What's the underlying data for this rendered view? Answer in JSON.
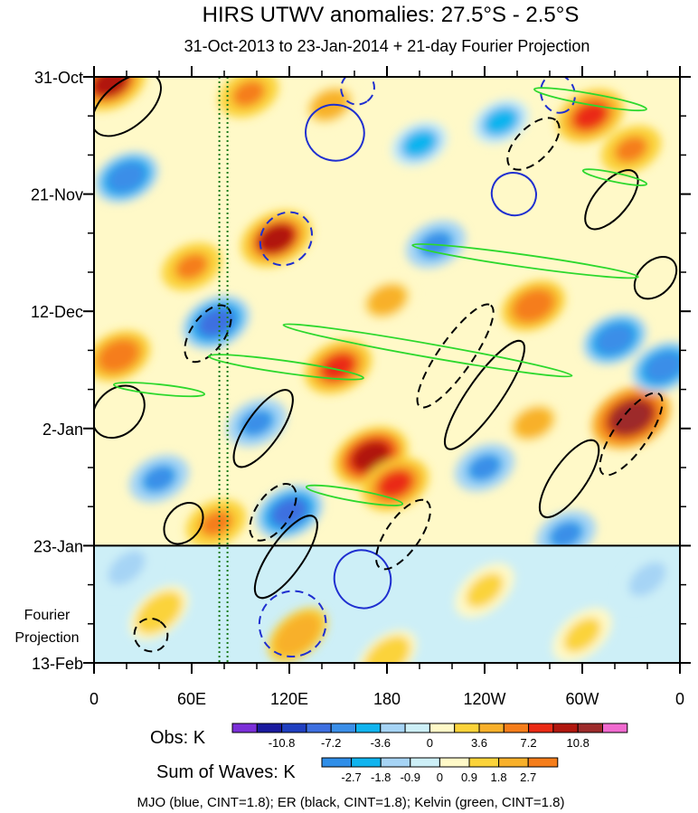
{
  "chart_data": {
    "type": "heatmap",
    "title": "HIRS UTWV anomalies: 27.5°S - 2.5°S",
    "subtitle": "31-Oct-2013 to 23-Jan-2014 + 21-day Fourier Projection",
    "x_axis": {
      "ticks": [
        "0",
        "60E",
        "120E",
        "180",
        "120W",
        "60W",
        "0"
      ],
      "tick_values_deg_east": [
        0,
        60,
        120,
        180,
        240,
        300,
        360
      ],
      "range": [
        0,
        360
      ]
    },
    "y_axis": {
      "ticks": [
        "31-Oct",
        "21-Nov",
        "12-Dec",
        "2-Jan",
        "23-Jan",
        "13-Feb"
      ],
      "tick_values_days": [
        0,
        21,
        42,
        63,
        84,
        105
      ],
      "range_days": [
        0,
        105
      ],
      "direction": "time increases downward"
    },
    "forecast_start_day": 84,
    "forecast_label_lines": [
      "Fourier",
      "Projection"
    ],
    "vertical_markers_deg_east": [
      77,
      82
    ],
    "obs_colorbar": {
      "label": "Obs: K",
      "levels": [
        "-10.8",
        "-7.2",
        "-3.6",
        "0",
        "3.6",
        "7.2",
        "10.8"
      ],
      "level_positions": [
        2,
        4,
        6,
        8,
        10,
        12,
        14
      ],
      "colors": [
        "#7b2fd8",
        "#1a1a9e",
        "#1f3fc0",
        "#3d6fe0",
        "#3a8ee8",
        "#10b4ef",
        "#a6d4f5",
        "#cdeff7",
        "#fff9c8",
        "#fbd33a",
        "#f8b02a",
        "#f57d1a",
        "#ea2a14",
        "#b0160e",
        "#9d2b2b",
        "#f06acf"
      ]
    },
    "waves_colorbar": {
      "label": "Sum of Waves: K",
      "levels": [
        "-2.7",
        "-1.8",
        "-0.9",
        "0",
        "0.9",
        "1.8",
        "2.7"
      ],
      "level_positions": [
        1,
        2,
        3,
        4,
        5,
        6,
        7
      ],
      "colors": [
        "#2f8ee8",
        "#10b4ef",
        "#a6d4f5",
        "#cdeff7",
        "#fff9c8",
        "#fbd33a",
        "#f8b02a",
        "#f57d1a"
      ]
    },
    "footnote": "MJO (blue, CINT=1.8); ER (black, CINT=1.8); Kelvin (green, CINT=1.8)",
    "series": [
      {
        "name": "MJO",
        "color": "#1f2fd0",
        "contours": [
          {
            "lon": 148,
            "day": 10,
            "a_lon": 18,
            "a_day": 5,
            "tilt": 12,
            "sign": 1
          },
          {
            "lon": 118,
            "day": 29,
            "a_lon": 15,
            "a_day": 5,
            "tilt": 40,
            "sign": -1
          },
          {
            "lon": 258,
            "day": 21,
            "a_lon": 13,
            "a_day": 4,
            "tilt": -70,
            "sign": 1
          },
          {
            "lon": 165,
            "day": 90,
            "a_lon": 18,
            "a_day": 5,
            "tilt": 62,
            "sign": 1
          },
          {
            "lon": 122,
            "day": 98,
            "a_lon": 20,
            "a_day": 6,
            "tilt": 62,
            "sign": -1
          },
          {
            "lon": 162,
            "day": 2,
            "a_lon": 10,
            "a_day": 3,
            "tilt": 55,
            "sign": -1
          },
          {
            "lon": 285,
            "day": 3,
            "a_lon": 12,
            "a_day": 3,
            "tilt": 70,
            "sign": -1
          }
        ]
      },
      {
        "name": "ER",
        "color": "#000000",
        "contours": [
          {
            "lon": 20,
            "day": 5,
            "a_lon": 25,
            "a_day": 4,
            "tilt": -40,
            "sign": 1
          },
          {
            "lon": 15,
            "day": 60,
            "a_lon": 18,
            "a_day": 4,
            "tilt": -45,
            "sign": 1
          },
          {
            "lon": 55,
            "day": 80,
            "a_lon": 14,
            "a_day": 3,
            "tilt": -50,
            "sign": 1
          },
          {
            "lon": 70,
            "day": 46,
            "a_lon": 20,
            "a_day": 3,
            "tilt": -55,
            "sign": -1
          },
          {
            "lon": 104,
            "day": 63,
            "a_lon": 28,
            "a_day": 3,
            "tilt": -55,
            "sign": 1
          },
          {
            "lon": 110,
            "day": 78,
            "a_lon": 20,
            "a_day": 3,
            "tilt": -55,
            "sign": -1
          },
          {
            "lon": 118,
            "day": 86,
            "a_lon": 30,
            "a_day": 3,
            "tilt": -55,
            "sign": 1
          },
          {
            "lon": 222,
            "day": 50,
            "a_lon": 38,
            "a_day": 3,
            "tilt": -55,
            "sign": -1
          },
          {
            "lon": 240,
            "day": 57,
            "a_lon": 40,
            "a_day": 3,
            "tilt": -55,
            "sign": 1
          },
          {
            "lon": 292,
            "day": 72,
            "a_lon": 28,
            "a_day": 3,
            "tilt": -55,
            "sign": 1
          },
          {
            "lon": 330,
            "day": 64,
            "a_lon": 30,
            "a_day": 3,
            "tilt": -55,
            "sign": -1
          },
          {
            "lon": 270,
            "day": 12,
            "a_lon": 20,
            "a_day": 3,
            "tilt": -45,
            "sign": -1
          },
          {
            "lon": 318,
            "day": 22,
            "a_lon": 22,
            "a_day": 3,
            "tilt": -50,
            "sign": 1
          },
          {
            "lon": 190,
            "day": 82,
            "a_lon": 25,
            "a_day": 3,
            "tilt": -55,
            "sign": -1
          },
          {
            "lon": 345,
            "day": 36,
            "a_lon": 15,
            "a_day": 3,
            "tilt": -45,
            "sign": 1
          },
          {
            "lon": 35,
            "day": 100,
            "a_lon": 10,
            "a_day": 3,
            "tilt": -55,
            "sign": -1
          }
        ]
      },
      {
        "name": "Kelvin",
        "color": "#2dd82d",
        "contours": [
          {
            "lon": 205,
            "day": 49,
            "a_lon": 90,
            "a_day": 1.2,
            "tilt": 10,
            "sign": 1
          },
          {
            "lon": 118,
            "day": 52,
            "a_lon": 48,
            "a_day": 1.1,
            "tilt": 8,
            "sign": 1
          },
          {
            "lon": 265,
            "day": 33,
            "a_lon": 70,
            "a_day": 1.1,
            "tilt": 8,
            "sign": 1
          },
          {
            "lon": 305,
            "day": 4,
            "a_lon": 35,
            "a_day": 1.0,
            "tilt": 10,
            "sign": 1
          },
          {
            "lon": 160,
            "day": 75,
            "a_lon": 30,
            "a_day": 1.0,
            "tilt": 10,
            "sign": 1
          },
          {
            "lon": 40,
            "day": 56,
            "a_lon": 28,
            "a_day": 0.9,
            "tilt": 6,
            "sign": 1
          },
          {
            "lon": 320,
            "day": 18,
            "a_lon": 20,
            "a_day": 0.8,
            "tilt": 12,
            "sign": 1
          }
        ]
      }
    ],
    "anomaly_hotspots": [
      {
        "lon": 10,
        "day": 1,
        "value": 9
      },
      {
        "lon": 95,
        "day": 3,
        "value": 6
      },
      {
        "lon": 145,
        "day": 5,
        "value": 5
      },
      {
        "lon": 305,
        "day": 7,
        "value": 8
      },
      {
        "lon": 330,
        "day": 13,
        "value": 6
      },
      {
        "lon": 112,
        "day": 29,
        "value": 9
      },
      {
        "lon": 60,
        "day": 34,
        "value": 6
      },
      {
        "lon": 180,
        "day": 40,
        "value": 5
      },
      {
        "lon": 270,
        "day": 41,
        "value": 7
      },
      {
        "lon": 15,
        "day": 50,
        "value": 7
      },
      {
        "lon": 150,
        "day": 52,
        "value": 8
      },
      {
        "lon": 330,
        "day": 61,
        "value": 11
      },
      {
        "lon": 170,
        "day": 68,
        "value": 10
      },
      {
        "lon": 185,
        "day": 73,
        "value": 8
      },
      {
        "lon": 75,
        "day": 80,
        "value": 6
      },
      {
        "lon": 270,
        "day": 62,
        "value": 5
      },
      {
        "lon": 20,
        "day": 18,
        "value": -7
      },
      {
        "lon": 75,
        "day": 44,
        "value": -8
      },
      {
        "lon": 210,
        "day": 30,
        "value": -6
      },
      {
        "lon": 240,
        "day": 70,
        "value": -6
      },
      {
        "lon": 320,
        "day": 47,
        "value": -7
      },
      {
        "lon": 40,
        "day": 72,
        "value": -6
      },
      {
        "lon": 120,
        "day": 78,
        "value": -8
      },
      {
        "lon": 290,
        "day": 82,
        "value": -6
      },
      {
        "lon": 350,
        "day": 52,
        "value": -7
      },
      {
        "lon": 200,
        "day": 12,
        "value": -5
      },
      {
        "lon": 100,
        "day": 62,
        "value": -6
      },
      {
        "lon": 250,
        "day": 8,
        "value": -5
      }
    ],
    "forecast_anomaly_hotspots": [
      {
        "lon": 125,
        "day": 100,
        "value": 2.5
      },
      {
        "lon": 40,
        "day": 96,
        "value": 1.5
      },
      {
        "lon": 240,
        "day": 92,
        "value": 1.2
      },
      {
        "lon": 300,
        "day": 100,
        "value": 1.0
      },
      {
        "lon": 180,
        "day": 104,
        "value": 1.5
      },
      {
        "lon": 20,
        "day": 88,
        "value": -1.0
      },
      {
        "lon": 340,
        "day": 90,
        "value": -1.0
      }
    ]
  }
}
